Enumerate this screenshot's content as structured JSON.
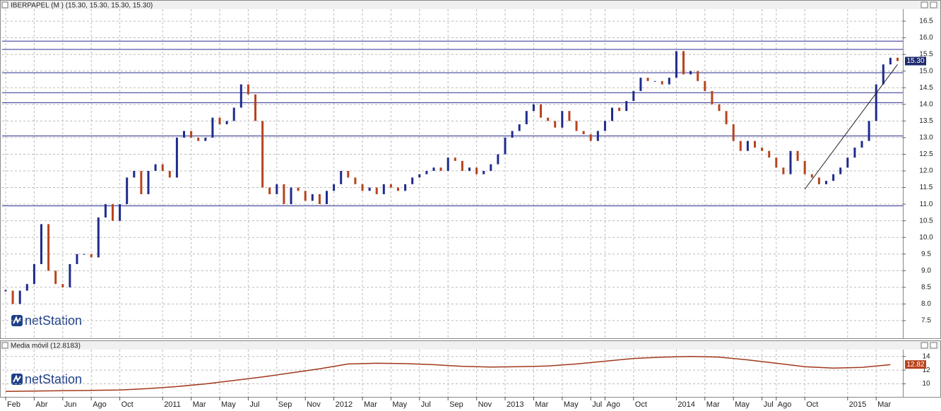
{
  "chart_data": [
    {
      "type": "ohlc-line",
      "title": "IBERPAPEL (M ) (15.30, 15.30, 15.30, 15.30)",
      "watermark": "netStation",
      "up_color": "#1f2a8c",
      "down_color": "#b8431e",
      "values": [
        8.4,
        8.0,
        8.4,
        8.6,
        9.2,
        10.4,
        9.0,
        8.6,
        8.5,
        9.2,
        9.5,
        9.5,
        9.4,
        10.6,
        11.0,
        10.5,
        11.0,
        11.8,
        12.0,
        11.3,
        12.0,
        12.2,
        12.0,
        11.8,
        13.0,
        13.2,
        13.0,
        12.9,
        13.0,
        13.6,
        13.4,
        13.5,
        13.9,
        14.6,
        14.3,
        13.5,
        11.5,
        11.3,
        11.6,
        11.0,
        11.5,
        11.4,
        11.1,
        11.3,
        11.0,
        11.4,
        11.6,
        12.0,
        11.8,
        11.6,
        11.4,
        11.5,
        11.3,
        11.6,
        11.5,
        11.4,
        11.6,
        11.8,
        11.9,
        12.0,
        12.1,
        12.0,
        12.4,
        12.3,
        12.0,
        12.1,
        11.9,
        12.0,
        12.2,
        12.5,
        13.0,
        13.2,
        13.4,
        13.8,
        14.0,
        13.6,
        13.5,
        13.3,
        13.8,
        13.5,
        13.2,
        13.1,
        12.9,
        13.2,
        13.5,
        13.9,
        13.8,
        14.1,
        14.4,
        14.8,
        14.7,
        14.7,
        14.6,
        14.8,
        15.6,
        14.9,
        15.0,
        14.7,
        14.4,
        14.0,
        13.8,
        13.4,
        12.9,
        12.6,
        12.9,
        12.7,
        12.6,
        12.4,
        12.1,
        11.9,
        12.6,
        12.3,
        11.9,
        11.8,
        11.6,
        11.7,
        11.9,
        12.1,
        12.4,
        12.7,
        12.9,
        13.5,
        14.6,
        15.2,
        15.4,
        15.3
      ],
      "ylim": [
        6.97,
        16.86
      ],
      "yticks": [
        7.5,
        {
          "value": 8,
          "label": "8.0"
        },
        8.5,
        {
          "value": 9,
          "label": "9.0"
        },
        9.5,
        {
          "value": 10,
          "label": "10.0"
        },
        10.5,
        {
          "value": 11,
          "label": "11.0"
        },
        11.5,
        {
          "value": 12,
          "label": "12.0"
        },
        12.5,
        {
          "value": 13,
          "label": "13.0"
        },
        13.5,
        {
          "value": 14,
          "label": "14.0"
        },
        14.5,
        {
          "value": 15,
          "label": "15.0"
        },
        15.5,
        {
          "value": 16,
          "label": "16.0"
        },
        16.5
      ],
      "levels": [
        15.9,
        15.65,
        14.95,
        14.35,
        14.05,
        13.05,
        10.95
      ],
      "level_color": "#2b2f8f",
      "trendline": {
        "x": [
          112,
          125
        ],
        "y": [
          11.45,
          15.2
        ]
      },
      "current": {
        "value": 15.3,
        "label": "15.30"
      },
      "current_color": "#1f2a6e",
      "xticks": [
        {
          "value": 0,
          "label": "Feb"
        },
        {
          "value": 4,
          "label": "Abr"
        },
        {
          "value": 8,
          "label": "Jun"
        },
        {
          "value": 12,
          "label": "Ago"
        },
        {
          "value": 16,
          "label": "Oct"
        },
        {
          "value": 22,
          "label": "2011"
        },
        {
          "value": 26,
          "label": "Mar"
        },
        {
          "value": 30,
          "label": "May"
        },
        {
          "value": 34,
          "label": "Jul"
        },
        {
          "value": 38,
          "label": "Sep"
        },
        {
          "value": 42,
          "label": "Nov"
        },
        {
          "value": 46,
          "label": "2012"
        },
        {
          "value": 50,
          "label": "Mar"
        },
        {
          "value": 54,
          "label": "May"
        },
        {
          "value": 58,
          "label": "Jul"
        },
        {
          "value": 62,
          "label": "Sep"
        },
        {
          "value": 66,
          "label": "Nov"
        },
        {
          "value": 70,
          "label": "2013"
        },
        {
          "value": 74,
          "label": "Mar"
        },
        {
          "value": 78,
          "label": "May"
        },
        {
          "value": 82,
          "label": "Jul"
        },
        {
          "value": 84,
          "label": "Ago"
        },
        {
          "value": 88,
          "label": "Oct"
        },
        {
          "value": 94,
          "label": "2014"
        },
        {
          "value": 98,
          "label": "Mar"
        },
        {
          "value": 102,
          "label": "May"
        },
        {
          "value": 106,
          "label": "Jul"
        },
        {
          "value": 108,
          "label": "Ago"
        },
        {
          "value": 112,
          "label": "Oct"
        },
        {
          "value": 118,
          "label": "2015"
        },
        {
          "value": 122,
          "label": "Mar"
        }
      ],
      "grid": true
    },
    {
      "type": "line",
      "title": "Media móvil (12.8183)",
      "watermark": "netStation",
      "color": "#a0391c",
      "values": [
        8.9,
        8.95,
        9.0,
        9.05,
        9.1,
        9.3,
        9.6,
        10.0,
        10.5,
        11.0,
        11.6,
        12.2,
        12.9,
        13.0,
        12.95,
        12.8,
        12.55,
        12.45,
        12.5,
        12.6,
        12.9,
        13.3,
        13.7,
        13.9,
        14.0,
        13.9,
        13.5,
        13.0,
        12.5,
        12.3,
        12.4,
        12.8
      ],
      "ylim": [
        8.1,
        15
      ],
      "yticks": [
        10,
        12,
        14
      ],
      "current": {
        "value": 12.82,
        "label": "12.82"
      },
      "current_color": "#b8431e",
      "grid": true
    }
  ]
}
